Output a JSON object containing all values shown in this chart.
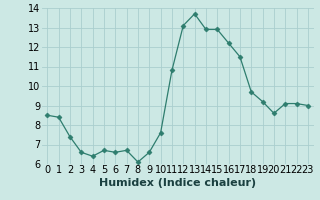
{
  "x": [
    0,
    1,
    2,
    3,
    4,
    5,
    6,
    7,
    8,
    9,
    10,
    11,
    12,
    13,
    14,
    15,
    16,
    17,
    18,
    19,
    20,
    21,
    22,
    23
  ],
  "y": [
    8.5,
    8.4,
    7.4,
    6.6,
    6.4,
    6.7,
    6.6,
    6.7,
    6.1,
    6.6,
    7.6,
    10.8,
    13.1,
    13.7,
    12.9,
    12.9,
    12.2,
    11.5,
    9.7,
    9.2,
    8.6,
    9.1,
    9.1,
    9.0
  ],
  "xlabel": "Humidex (Indice chaleur)",
  "ylim": [
    6,
    14
  ],
  "yticks": [
    6,
    7,
    8,
    9,
    10,
    11,
    12,
    13,
    14
  ],
  "xticks": [
    0,
    1,
    2,
    3,
    4,
    5,
    6,
    7,
    8,
    9,
    10,
    11,
    12,
    13,
    14,
    15,
    16,
    17,
    18,
    19,
    20,
    21,
    22,
    23
  ],
  "line_color": "#2e7d6e",
  "marker": "D",
  "marker_size": 2.5,
  "bg_color": "#cce8e4",
  "grid_color": "#aacece",
  "xlabel_fontsize": 8,
  "tick_fontsize": 7
}
